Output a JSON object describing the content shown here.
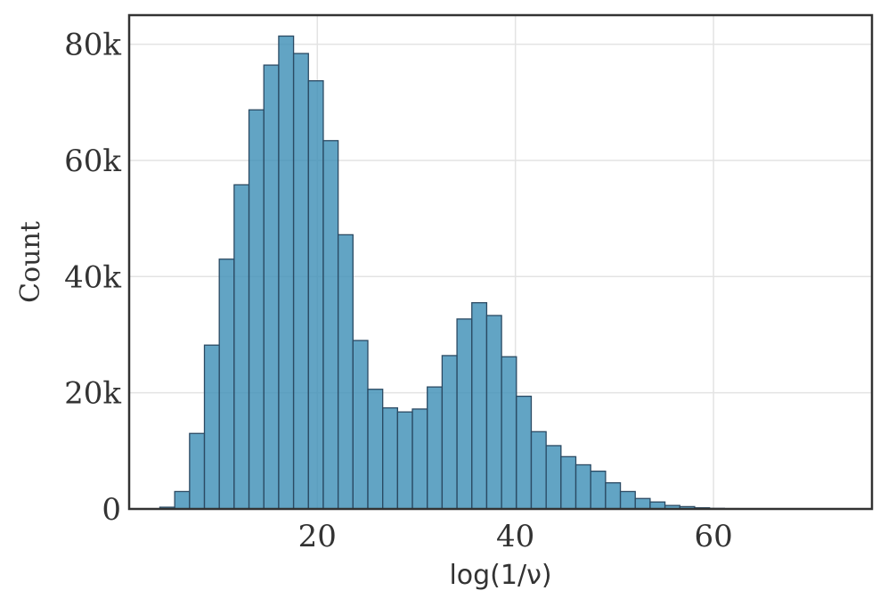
{
  "chart_data": {
    "type": "bar",
    "title": "",
    "xlabel": "log(1/ν)",
    "ylabel": "Count",
    "xlim": [
      1,
      76
    ],
    "ylim": [
      0,
      85000
    ],
    "grid": true,
    "legend": "none",
    "bar_color": "#3b8db5",
    "edge_color": "#2b4a63",
    "x_ticks": [
      {
        "value": 20,
        "label": "20"
      },
      {
        "value": 40,
        "label": "40"
      },
      {
        "value": 60,
        "label": "60"
      }
    ],
    "y_ticks": [
      {
        "value": 0,
        "label": "0"
      },
      {
        "value": 20000,
        "label": "20k"
      },
      {
        "value": 40000,
        "label": "40k"
      },
      {
        "value": 60000,
        "label": "60k"
      },
      {
        "value": 80000,
        "label": "80k"
      }
    ],
    "bin_edges": [
      4.1,
      5.6,
      7.1,
      8.6,
      10.1,
      11.6,
      13.1,
      14.6,
      16.1,
      17.6,
      19.1,
      20.6,
      22.1,
      23.6,
      25.1,
      26.6,
      28.1,
      29.6,
      31.1,
      32.6,
      34.1,
      35.6,
      37.1,
      38.6,
      40.1,
      41.6,
      43.1,
      44.6,
      46.1,
      47.6,
      49.1,
      50.6,
      52.1,
      53.6,
      55.1,
      56.6,
      58.1,
      59.6,
      61.1,
      62.6,
      64.1,
      65.6,
      67.1,
      68.6,
      70.1,
      71.6,
      73.1
    ],
    "values": [
      300,
      3000,
      13000,
      28200,
      43000,
      55800,
      68700,
      76400,
      81400,
      78400,
      73700,
      63400,
      47200,
      29000,
      20600,
      17400,
      16700,
      17200,
      21000,
      26400,
      32700,
      35500,
      33300,
      26200,
      19400,
      13300,
      10900,
      9000,
      7600,
      6500,
      4500,
      3000,
      1800,
      1200,
      600,
      400,
      200,
      100,
      60,
      40,
      20,
      10,
      5,
      5,
      3,
      2
    ]
  }
}
